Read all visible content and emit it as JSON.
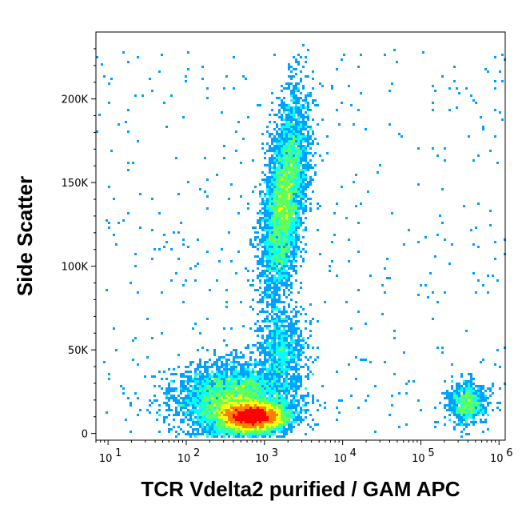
{
  "chart_data": {
    "type": "scatter",
    "subtype": "flow-cytometry density dot plot",
    "xlabel": "TCR Vdelta2 purified / GAM APC",
    "ylabel": "Side Scatter",
    "xscale": "log",
    "xlim": [
      7,
      1200000
    ],
    "ylim": [
      -4000,
      240000
    ],
    "x_ticks": [
      {
        "value": 10,
        "base": "10",
        "exp": "1"
      },
      {
        "value": 100,
        "base": "10",
        "exp": "2"
      },
      {
        "value": 1000,
        "base": "10",
        "exp": "3"
      },
      {
        "value": 10000,
        "base": "10",
        "exp": "4"
      },
      {
        "value": 100000,
        "base": "10",
        "exp": "5"
      },
      {
        "value": 1000000,
        "base": "10",
        "exp": "6"
      }
    ],
    "y_ticks": [
      {
        "value": 0,
        "label": "0"
      },
      {
        "value": 50000,
        "label": "50K"
      },
      {
        "value": 100000,
        "label": "100K"
      },
      {
        "value": 150000,
        "label": "150K"
      },
      {
        "value": 200000,
        "label": "200K"
      }
    ],
    "grid": false,
    "colormap": [
      "#0000ff",
      "#00a0ff",
      "#00ffff",
      "#60ff60",
      "#ffff00",
      "#ff8000",
      "#ff0000"
    ],
    "populations": [
      {
        "name": "dense low-SSC population",
        "x_center": 700,
        "y_center": 10000,
        "log_x_spread": 0.2,
        "y_spread": 4000,
        "peak_density": "high"
      },
      {
        "name": "low-SSC spread",
        "x_center": 400,
        "y_center": 20000,
        "log_x_spread": 0.35,
        "y_spread": 10000,
        "peak_density": "medium"
      },
      {
        "name": "high-SSC population",
        "x_center": 1800,
        "y_center": 140000,
        "log_x_spread": 0.12,
        "y_spread": 28000,
        "peak_density": "medium"
      },
      {
        "name": "intermediate population",
        "x_center": 1700,
        "y_center": 50000,
        "log_x_spread": 0.15,
        "y_spread": 12000,
        "peak_density": "low"
      },
      {
        "name": "positive cluster",
        "x_center": 400000,
        "y_center": 18000,
        "log_x_spread": 0.12,
        "y_spread": 6000,
        "peak_density": "low"
      }
    ]
  }
}
